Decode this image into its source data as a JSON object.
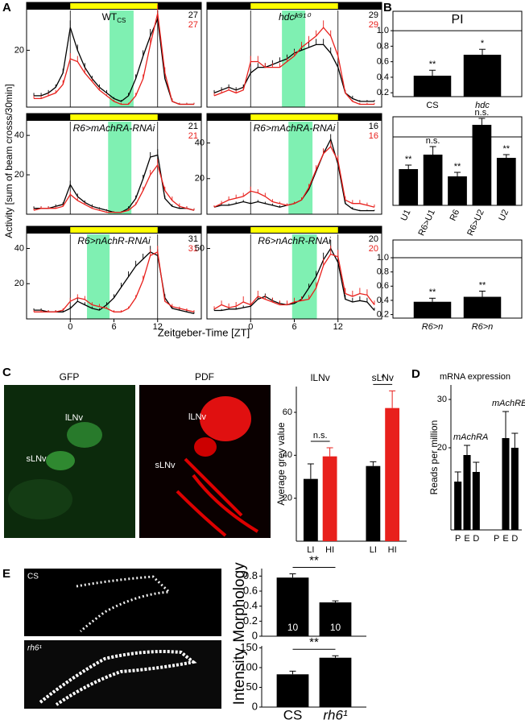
{
  "figure": {
    "panel_labels": [
      "A",
      "B",
      "C",
      "D",
      "E"
    ],
    "A": {
      "ylabel": "Activity [sum of beam crosss/30min]",
      "xlabel": "Zeitgeber-Time [ZT]"
    },
    "C": {
      "images": [
        {
          "title": "GFP",
          "labels": [
            "lLNv",
            "sLNv"
          ]
        },
        {
          "title": "PDF",
          "labels": [
            "lLNv",
            "sLNv"
          ]
        }
      ]
    },
    "E": {
      "images": [
        "CS",
        "rh6¹"
      ]
    }
  },
  "chart_data": [
    {
      "type": "line",
      "title": "WT",
      "title_sub": "CS",
      "x": [
        -5,
        -4,
        -3,
        -2,
        -1,
        0,
        1,
        2,
        3,
        4,
        5,
        6,
        7,
        8,
        9,
        10,
        11,
        12,
        13,
        14,
        15,
        16,
        17
      ],
      "xlim": [
        -6,
        18
      ],
      "ylim": [
        0,
        34
      ],
      "yticks": [
        20
      ],
      "light": [
        0,
        12
      ],
      "light_color": "#ffff00",
      "shade": [
        5.4,
        8.7
      ],
      "shade_color": "#7ff0b2",
      "series": [
        {
          "color": "#000000",
          "n": 27,
          "values": [
            4,
            4,
            5,
            7,
            12,
            28,
            20,
            14,
            10,
            7,
            5,
            3,
            2,
            4,
            10,
            18,
            25,
            31,
            10,
            2,
            1,
            1,
            1
          ],
          "errors": [
            1,
            1,
            1,
            1,
            1.5,
            2.5,
            2,
            1.5,
            1,
            1,
            1,
            0.5,
            0.5,
            1,
            1.5,
            2,
            2.5,
            3,
            2,
            1,
            0.5,
            0.5,
            0.5
          ]
        },
        {
          "color": "#e8201c",
          "n": 27,
          "values": [
            3,
            3,
            4,
            5,
            8,
            17,
            16,
            12,
            9,
            6,
            4,
            2,
            1,
            1,
            4,
            10,
            22,
            33,
            12,
            2,
            1,
            1,
            1
          ],
          "errors": [
            1,
            1,
            1,
            1,
            1.5,
            2,
            2,
            1.5,
            1,
            1,
            0.5,
            0.5,
            0.5,
            0.5,
            1,
            1.5,
            2.5,
            3,
            2,
            1,
            0.5,
            0.5,
            0.5
          ]
        }
      ]
    },
    {
      "type": "line",
      "title": "hdcʲᵏ⁹¹⁰",
      "x": [
        -5,
        -4,
        -3,
        -2,
        -1,
        0,
        1,
        2,
        3,
        4,
        5,
        6,
        7,
        8,
        9,
        10,
        11,
        12,
        13,
        14,
        15,
        16,
        17
      ],
      "xlim": [
        -6,
        18
      ],
      "ylim": [
        0,
        34
      ],
      "light": [
        0,
        12
      ],
      "light_color": "#ffff00",
      "shade": [
        4.3,
        7.5
      ],
      "shade_color": "#7ff0b2",
      "series": [
        {
          "color": "#000000",
          "n": 29,
          "values": [
            5,
            6,
            7,
            6,
            7,
            12,
            14,
            14,
            15,
            16,
            17,
            19,
            20,
            21,
            22,
            22,
            19,
            14,
            5,
            3,
            2,
            2,
            2
          ],
          "errors": [
            1,
            1,
            1,
            1,
            1,
            1.5,
            1.5,
            1.5,
            1.5,
            1.5,
            1.5,
            1.5,
            2,
            2,
            2,
            2,
            2,
            2,
            1,
            1,
            0.5,
            0.5,
            0.5
          ]
        },
        {
          "color": "#e8201c",
          "n": 29,
          "values": [
            4,
            5,
            6,
            5,
            6,
            16,
            16,
            14,
            14,
            14,
            16,
            18,
            21,
            23,
            25,
            28,
            25,
            18,
            5,
            2,
            1,
            1,
            1
          ],
          "errors": [
            1,
            1,
            1,
            1,
            1,
            2,
            2,
            1.5,
            1.5,
            1.5,
            1.5,
            2,
            2,
            2,
            2,
            2.5,
            2,
            2,
            1,
            0.5,
            0.5,
            0.5,
            0.5
          ]
        }
      ]
    },
    {
      "type": "line",
      "title": "R6>mAchRA-RNAi",
      "x": [
        -5,
        -4,
        -3,
        -2,
        -1,
        0,
        1,
        2,
        3,
        4,
        5,
        6,
        7,
        8,
        9,
        10,
        11,
        12,
        13,
        14,
        15,
        16,
        17
      ],
      "xlim": [
        -6,
        18
      ],
      "ylim": [
        0,
        47
      ],
      "yticks": [
        20,
        40
      ],
      "light": [
        0,
        12
      ],
      "light_color": "#ffff00",
      "shade": [
        5.2,
        8.4
      ],
      "shade_color": "#7ff0b2",
      "series": [
        {
          "color": "#000000",
          "n": 21,
          "values": [
            3,
            3,
            3,
            4,
            5,
            15,
            9,
            6,
            4,
            3,
            2,
            1,
            1,
            3,
            8,
            18,
            29,
            30,
            8,
            4,
            3,
            3,
            2
          ],
          "errors": [
            1,
            1,
            1,
            1,
            1,
            2,
            1.5,
            1,
            1,
            0.5,
            0.5,
            0.5,
            0.5,
            1,
            1.5,
            2,
            2.5,
            3,
            1.5,
            1,
            1,
            1,
            1
          ]
        },
        {
          "color": "#e8201c",
          "n": 21,
          "values": [
            2,
            3,
            3,
            3,
            4,
            10,
            7,
            5,
            3,
            2,
            1,
            1,
            1,
            2,
            5,
            12,
            20,
            25,
            12,
            7,
            4,
            3,
            2
          ],
          "errors": [
            1,
            1,
            1,
            1,
            1,
            1.5,
            1.5,
            1,
            1,
            0.5,
            0.5,
            0.5,
            0.5,
            1,
            1,
            2,
            2.5,
            3,
            2,
            2,
            1.5,
            1,
            1
          ]
        }
      ]
    },
    {
      "type": "line",
      "title": "R6>mAchRA-RNAi",
      "x": [
        -5,
        -4,
        -3,
        -2,
        -1,
        0,
        1,
        2,
        3,
        4,
        5,
        6,
        7,
        8,
        9,
        10,
        11,
        12,
        13,
        14,
        15,
        16,
        17
      ],
      "xlim": [
        -6,
        18
      ],
      "ylim": [
        0,
        52
      ],
      "yticks": [
        20,
        40
      ],
      "light": [
        0,
        12
      ],
      "light_color": "#ffff00",
      "shade": [
        5.2,
        8.5
      ],
      "shade_color": "#7ff0b2",
      "series": [
        {
          "color": "#000000",
          "n": 16,
          "values": [
            4,
            5,
            5,
            6,
            7,
            6,
            7,
            6,
            5,
            4,
            5,
            6,
            8,
            14,
            24,
            34,
            42,
            28,
            6,
            3,
            2,
            2,
            2
          ],
          "errors": [
            1,
            1,
            1,
            1,
            1,
            1,
            1,
            1,
            1,
            1,
            1,
            1,
            1,
            1.5,
            2,
            2.5,
            3,
            3,
            1.5,
            1,
            0.5,
            0.5,
            0.5
          ]
        },
        {
          "color": "#e8201c",
          "n": 16,
          "values": [
            4,
            6,
            8,
            9,
            10,
            13,
            12,
            10,
            7,
            6,
            5,
            6,
            8,
            15,
            25,
            34,
            38,
            30,
            8,
            6,
            6,
            5,
            4
          ],
          "errors": [
            1,
            1.5,
            2,
            2,
            2,
            2.5,
            2,
            2,
            1.5,
            1,
            1,
            1,
            1.5,
            2,
            2.5,
            3,
            3,
            3,
            2,
            2,
            2,
            1.5,
            1.5
          ]
        }
      ]
    },
    {
      "type": "line",
      "title": "R6>nAchR-RNAi",
      "x": [
        -5,
        -4,
        -3,
        -2,
        -1,
        0,
        1,
        2,
        3,
        4,
        5,
        6,
        7,
        8,
        9,
        10,
        11,
        12,
        13,
        14,
        15,
        16,
        17
      ],
      "xlim": [
        -6,
        18
      ],
      "ylim": [
        0,
        48
      ],
      "yticks": [
        20,
        40
      ],
      "xticks": [
        0,
        6,
        12
      ],
      "light": [
        0,
        12
      ],
      "light_color": "#ffff00",
      "shade": [
        2.3,
        5.4
      ],
      "shade_color": "#7ff0b2",
      "series": [
        {
          "color": "#000000",
          "n": 31,
          "values": [
            5,
            5,
            4,
            4,
            4,
            6,
            10,
            8,
            6,
            5,
            8,
            12,
            18,
            24,
            30,
            34,
            38,
            36,
            12,
            6,
            5,
            4,
            3
          ],
          "errors": [
            1,
            1,
            1,
            1,
            1,
            1.5,
            2,
            1.5,
            1,
            1,
            1.5,
            2,
            2.5,
            3,
            3,
            3,
            3.5,
            3.5,
            2,
            1,
            1,
            1,
            1
          ]
        },
        {
          "color": "#e8201c",
          "n": 31,
          "values": [
            4,
            4,
            4,
            4,
            5,
            10,
            12,
            11,
            8,
            7,
            6,
            4,
            4,
            6,
            12,
            22,
            36,
            38,
            10,
            7,
            6,
            5,
            4
          ],
          "errors": [
            1,
            1,
            1,
            1,
            1,
            2,
            2,
            2,
            1.5,
            1.5,
            1,
            1,
            1,
            1,
            1.5,
            2.5,
            3.5,
            3.5,
            2,
            1.5,
            1,
            1,
            1
          ]
        }
      ]
    },
    {
      "type": "line",
      "title": "R6>nAchR-RNAi",
      "x": [
        -5,
        -4,
        -3,
        -2,
        -1,
        0,
        1,
        2,
        3,
        4,
        5,
        6,
        7,
        8,
        9,
        10,
        11,
        12,
        13,
        14,
        15,
        16,
        17
      ],
      "xlim": [
        -6,
        18
      ],
      "ylim": [
        0,
        60
      ],
      "yticks": [
        50
      ],
      "xticks": [
        0,
        6,
        12
      ],
      "light": [
        0,
        12
      ],
      "light_color": "#ffff00",
      "shade": [
        5.7,
        9.1
      ],
      "shade_color": "#7ff0b2",
      "series": [
        {
          "color": "#000000",
          "n": 20,
          "values": [
            6,
            6,
            7,
            7,
            8,
            9,
            14,
            16,
            13,
            11,
            10,
            11,
            14,
            22,
            30,
            42,
            50,
            40,
            14,
            12,
            13,
            12,
            6
          ],
          "errors": [
            1,
            1,
            1,
            1.5,
            1.5,
            2,
            2,
            2,
            2,
            1.5,
            1.5,
            1.5,
            2,
            3,
            4,
            5,
            6,
            5,
            3,
            3,
            3,
            3,
            2
          ]
        },
        {
          "color": "#e8201c",
          "n": 20,
          "values": [
            7,
            10,
            8,
            9,
            12,
            10,
            16,
            14,
            12,
            10,
            10,
            12,
            13,
            14,
            22,
            38,
            46,
            44,
            18,
            16,
            18,
            17,
            10
          ],
          "errors": [
            2,
            3,
            3,
            3,
            4,
            3,
            4,
            3,
            3,
            3,
            3,
            3,
            3,
            3,
            4,
            5,
            6,
            5,
            4,
            4,
            4,
            4,
            3
          ]
        }
      ]
    },
    {
      "type": "bar",
      "title": "PI",
      "categories": [
        "CS",
        "hdc"
      ],
      "values": [
        0.42,
        0.69
      ],
      "errors": [
        0.07,
        0.07
      ],
      "value_notes": [
        "**",
        "*"
      ],
      "color": "#000000",
      "ylim": [
        0.15,
        1.25
      ],
      "yticks": [
        0.2,
        0.4,
        0.6,
        0.8,
        {
          "value": 1,
          "label": "1.0"
        }
      ],
      "reference": 1
    },
    {
      "type": "bar",
      "categories": [
        "U1",
        "R6>U1",
        "R6",
        "R6>U2",
        "U2"
      ],
      "values": [
        0.6,
        0.78,
        0.51,
        1.15,
        0.74
      ],
      "errors": [
        0.05,
        0.1,
        0.05,
        0.08,
        0.04
      ],
      "value_notes": [
        "**",
        "n.s.",
        "**",
        "n.s.",
        "**"
      ],
      "color": "#000000",
      "ylim": [
        0.15,
        1.25
      ],
      "reference": 1
    },
    {
      "type": "bar",
      "categories": [
        "R6>n",
        "R6>n"
      ],
      "values": [
        0.38,
        0.45
      ],
      "errors": [
        0.05,
        0.08
      ],
      "value_notes": [
        "**",
        "**"
      ],
      "color": "#000000",
      "ylim": [
        0.15,
        1.25
      ],
      "yticks": [
        0.2,
        0.4,
        0.6,
        0.8,
        {
          "value": 1,
          "label": "1.0"
        }
      ],
      "reference": 1
    },
    {
      "type": "bar",
      "ylabel": "Average grey value",
      "groups": [
        "lLNv",
        "sLNv"
      ],
      "categories": [
        "LI",
        "HI",
        "LI",
        "HI"
      ],
      "values": [
        29,
        39.5,
        35,
        62
      ],
      "errors": [
        7,
        4,
        2,
        8
      ],
      "colors": [
        "#000000",
        "#e8201c",
        "#000000",
        "#e8201c"
      ],
      "ylim": [
        0,
        72
      ],
      "yticks": [
        20,
        40,
        60
      ],
      "group_notes": [
        "n.s.",
        "*"
      ]
    },
    {
      "type": "bar",
      "title": "mRNA expression",
      "ylabel": "Reads per million",
      "groups": [
        "mAchRA",
        "mAchRB"
      ],
      "categories": [
        "P",
        "E",
        "D",
        "P",
        "E",
        "D"
      ],
      "values": [
        13,
        18.5,
        15,
        null,
        22,
        20
      ],
      "errors": [
        2,
        2,
        2,
        null,
        5.5,
        3
      ],
      "color": "#000000",
      "ylim": [
        3,
        33
      ],
      "yticks": [
        20,
        30
      ]
    },
    {
      "type": "bar",
      "ylabel": "Morphology",
      "values": [
        0.78,
        0.45
      ],
      "errors": [
        0.05,
        0.02
      ],
      "bar_labels": [
        10,
        10
      ],
      "bracket_note": "**",
      "color": "#000000",
      "ylim": [
        0,
        0.9
      ],
      "yticks": [
        0,
        0.2,
        0.4,
        0.6,
        0.8
      ]
    },
    {
      "type": "bar",
      "ylabel": "Intensity",
      "categories": [
        "CS",
        "rh6¹"
      ],
      "values": [
        83,
        125
      ],
      "errors": [
        8,
        5
      ],
      "bracket_note": "**",
      "color": "#000000",
      "ylim": [
        0,
        155
      ],
      "yticks": [
        0,
        50,
        100,
        150
      ]
    }
  ]
}
